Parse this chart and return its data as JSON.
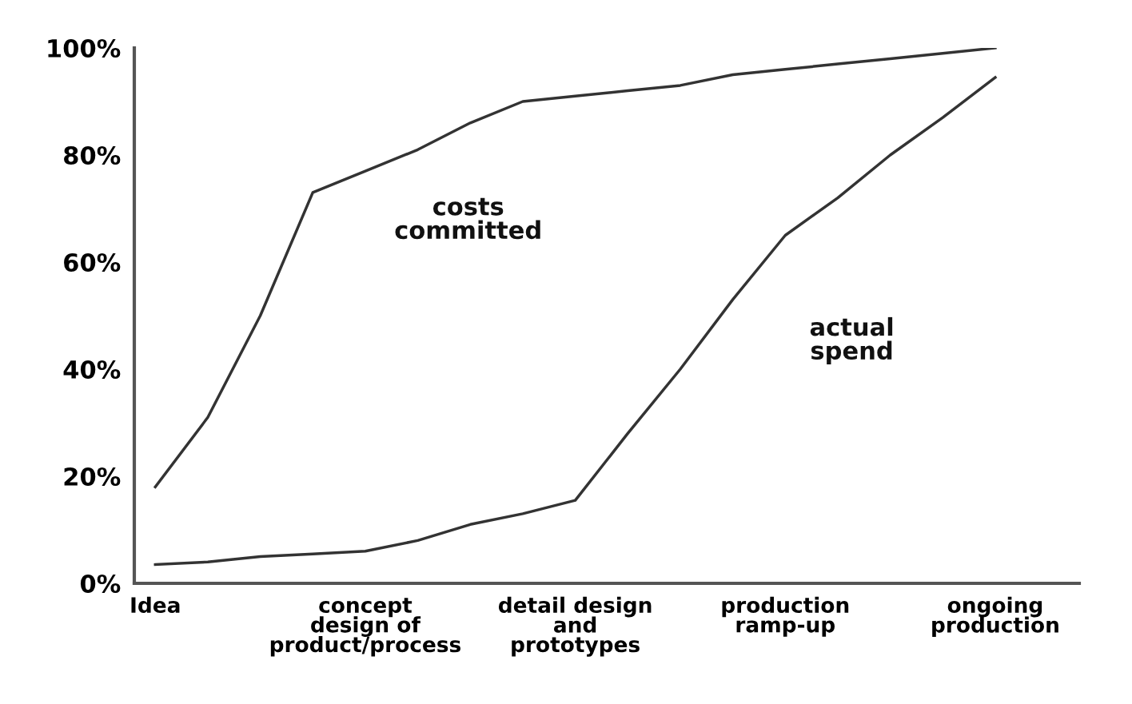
{
  "chart_data": {
    "type": "line",
    "categories": [
      "Idea",
      null,
      null,
      null,
      "concept\ndesign of\nproduct/process",
      null,
      null,
      null,
      "detail design\nand\nprototypes",
      null,
      null,
      null,
      "production\nramp-up",
      null,
      null,
      null,
      "ongoing\nproduction"
    ],
    "ylim": [
      0,
      100
    ],
    "yticks": [
      {
        "value": 0,
        "label": "0%"
      },
      {
        "value": 20,
        "label": "20%"
      },
      {
        "value": 40,
        "label": "40%"
      },
      {
        "value": 60,
        "label": "60%"
      },
      {
        "value": 80,
        "label": "80%"
      },
      {
        "value": 100,
        "label": "100%"
      }
    ],
    "series": [
      {
        "name": "costs\ncommitted",
        "color": "#333333",
        "values": [
          18,
          31,
          50,
          73,
          77,
          81,
          86,
          90,
          91,
          92,
          93,
          95,
          96,
          97,
          98,
          99,
          100
        ]
      },
      {
        "name": "actual\nspend",
        "color": "#333333",
        "values": [
          3.5,
          4,
          5,
          5.5,
          6,
          8,
          11,
          13,
          15.5,
          28,
          40,
          53,
          65,
          72,
          80,
          87,
          94.5
        ]
      }
    ],
    "grid": false,
    "legend": false,
    "marker": "none",
    "line_style": "solid"
  }
}
